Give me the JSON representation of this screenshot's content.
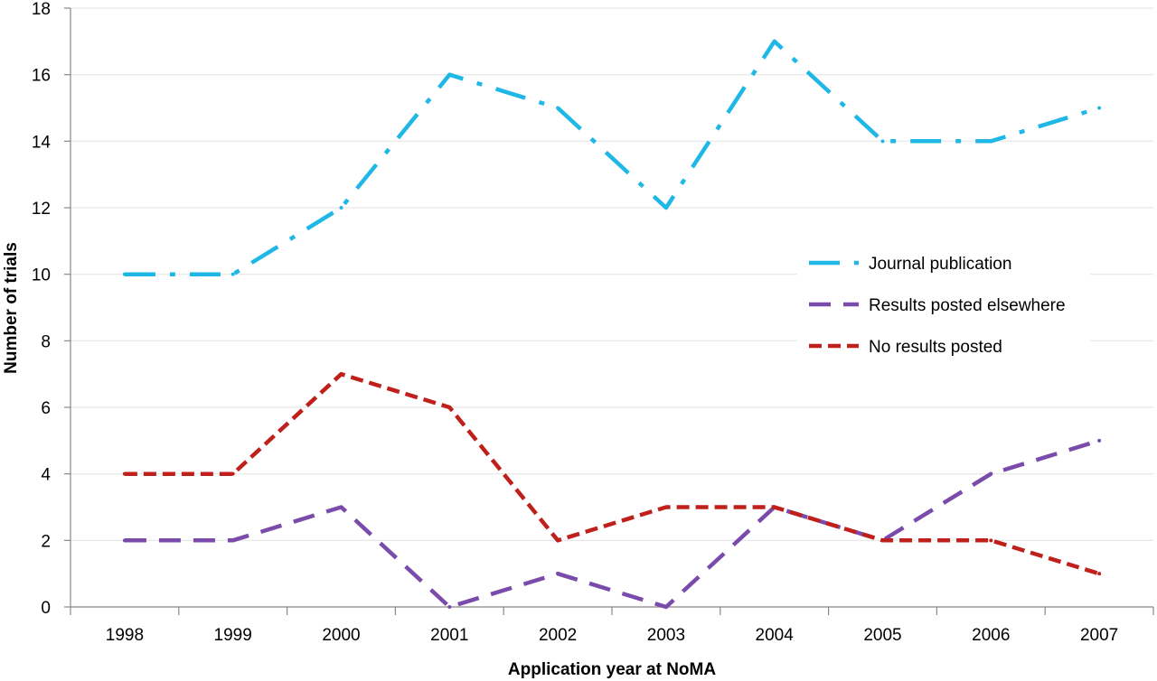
{
  "chart_data": {
    "type": "line",
    "xlabel": "Application year at NoMA",
    "ylabel": "Number of trials",
    "categories": [
      "1998",
      "1999",
      "2000",
      "2001",
      "2002",
      "2003",
      "2004",
      "2005",
      "2006",
      "2007"
    ],
    "ylim": [
      0,
      18
    ],
    "yticks": [
      0,
      2,
      4,
      6,
      8,
      10,
      12,
      14,
      16,
      18
    ],
    "grid": true,
    "legend_position": "right",
    "series": [
      {
        "name": "Journal publication",
        "values": [
          10,
          10,
          12,
          16,
          15,
          12,
          17,
          14,
          14,
          15
        ],
        "color": "#1fb8e6",
        "dash": "dash-dot"
      },
      {
        "name": "Results posted elsewhere",
        "values": [
          2,
          2,
          3,
          0,
          1,
          0,
          3,
          2,
          4,
          5
        ],
        "color": "#7a4bab",
        "dash": "dashed"
      },
      {
        "name": "No results posted",
        "values": [
          4,
          4,
          7,
          6,
          2,
          3,
          3,
          2,
          2,
          1
        ],
        "color": "#c0201c",
        "dash": "short-dash"
      }
    ]
  }
}
